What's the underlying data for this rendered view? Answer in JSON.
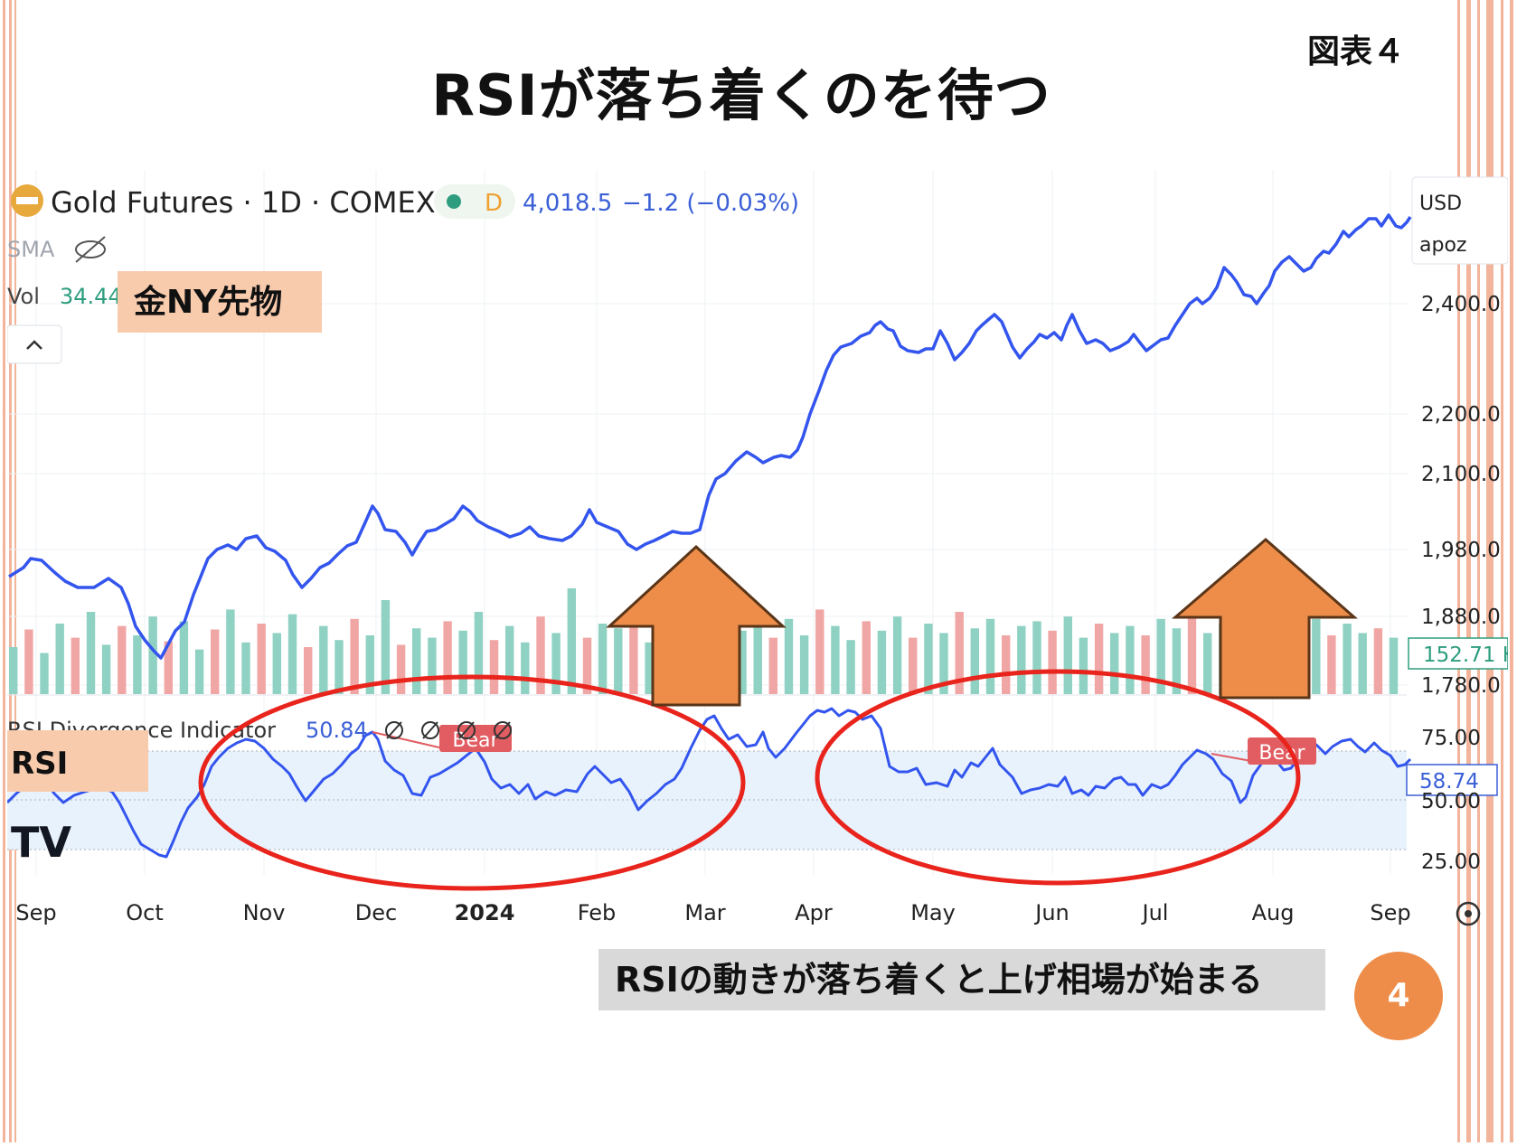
{
  "page": {
    "title": "RSIが落ち着くのを待つ",
    "figure_label": "図表４",
    "caption": "RSIの動きが落ち着くと上げ相場が始まる",
    "page_number": "4",
    "labels": {
      "gold": "金NY先物",
      "rsi": "RSI"
    }
  },
  "colors": {
    "price_line": "#3355ee",
    "volume_up": "#8fd1c3",
    "volume_down": "#f0a6a4",
    "rsi_band": "#e8f2fd",
    "annotation_circle": "#e8241c",
    "arrow_fill": "#ed8d49",
    "arrow_stroke": "#5a3518",
    "label_bg": "#f8cbad",
    "bear_label": "#e25d61",
    "stripe": "#f2b49a"
  },
  "header": {
    "symbol": "Gold Futures · 1D · COMEX",
    "flag": "D",
    "price": "4,018.5",
    "change": "−1.2 (−0.03%)",
    "sma_label": "SMA",
    "vol_label": "Vol",
    "vol_value": "34.44",
    "currency": "USD",
    "scale_label": "apoz"
  },
  "chart_data": [
    {
      "type": "line",
      "ylabel": "",
      "x_ticks": [
        "Sep",
        "Oct",
        "Nov",
        "Dec",
        "2024",
        "Feb",
        "Mar",
        "Apr",
        "May",
        "Jun",
        "Jul",
        "Aug",
        "Sep"
      ],
      "y_ticks": [
        "2,400.0",
        "2,200.0",
        "2,100.0",
        "1,980.0",
        "1,880.0",
        "1,780.0"
      ],
      "series": [
        {
          "x": [
            "2023-09-01",
            "2023-09-15",
            "2023-10-01",
            "2023-10-06",
            "2023-10-15",
            "2023-10-27",
            "2023-11-01",
            "2023-11-15",
            "2023-11-28",
            "2023-12-01",
            "2023-12-04",
            "2023-12-13",
            "2023-12-28",
            "2024-01-02",
            "2024-01-16",
            "2024-02-01",
            "2024-02-14",
            "2024-02-21",
            "2024-03-01",
            "2024-03-04",
            "2024-03-08",
            "2024-03-15",
            "2024-03-21",
            "2024-04-01",
            "2024-04-08",
            "2024-04-12",
            "2024-04-19",
            "2024-05-01",
            "2024-05-20",
            "2024-06-07",
            "2024-06-14",
            "2024-07-01",
            "2024-07-16",
            "2024-07-25",
            "2024-08-02",
            "2024-08-15",
            "2024-08-30",
            "2024-09-06",
            "2024-09-13"
          ],
          "values": [
            1940,
            1930,
            1870,
            1830,
            1875,
            1995,
            1985,
            1965,
            2040,
            2060,
            2035,
            2000,
            2085,
            2070,
            2040,
            2040,
            1995,
            2020,
            2085,
            2140,
            2180,
            2160,
            2185,
            2260,
            2340,
            2390,
            2400,
            2320,
            2430,
            2310,
            2330,
            2340,
            2470,
            2360,
            2480,
            2460,
            2500,
            2510,
            2580
          ]
        }
      ]
    },
    {
      "type": "line",
      "title": "RSI Divergence Indicator",
      "current_value": "50.84",
      "axis_value": "58.74",
      "y_ticks": [
        "75.00",
        "50.00",
        "25.00"
      ],
      "band": [
        30,
        70
      ],
      "series": [
        {
          "values": [
            55,
            65,
            50,
            60,
            55,
            35,
            20,
            35,
            55,
            70,
            72,
            65,
            55,
            45,
            60,
            72,
            65,
            55,
            48,
            62,
            68,
            55,
            50,
            55,
            45,
            50,
            40,
            55,
            48,
            40,
            52,
            82,
            70,
            75,
            65,
            85,
            88,
            78,
            55,
            48,
            60,
            50,
            62,
            48,
            50,
            52,
            48,
            55,
            50,
            48,
            55,
            50,
            68,
            65,
            50,
            60,
            55,
            68,
            70,
            65,
            60,
            66,
            58
          ]
        }
      ],
      "annotations": [
        "Bear",
        "Bear"
      ]
    },
    {
      "type": "bar",
      "title": "Vol",
      "current_value": "152.71 K",
      "values": [
        40,
        55,
        35,
        60,
        48,
        70,
        42,
        58,
        50,
        66,
        45,
        62,
        38,
        55,
        72,
        44,
        60,
        52,
        68,
        40,
        58,
        46,
        64,
        50,
        80,
        42,
        56,
        48,
        62,
        54,
        70,
        46,
        58,
        44,
        66,
        52,
        90,
        48,
        60,
        56,
        72,
        44,
        62,
        50,
        58,
        46,
        68,
        54,
        60,
        48,
        64,
        50,
        72,
        58,
        46,
        62,
        54,
        66,
        48,
        60,
        52,
        70,
        56,
        64,
        50,
        58,
        62,
        54,
        66,
        48,
        60,
        52,
        58,
        50,
        64,
        56,
        68,
        52,
        60,
        48,
        62,
        54,
        58,
        46,
        64,
        50,
        60,
        52,
        56,
        48
      ]
    }
  ]
}
